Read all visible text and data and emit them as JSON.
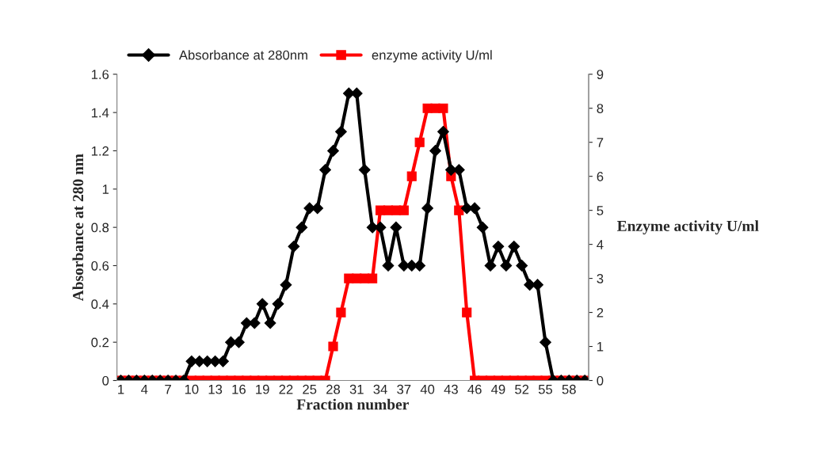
{
  "chart_data": {
    "type": "line",
    "categories": [
      "1",
      null,
      null,
      "4",
      null,
      null,
      "7",
      null,
      null,
      "10",
      null,
      null,
      "13",
      null,
      null,
      "16",
      null,
      null,
      "19",
      null,
      null,
      "22",
      null,
      null,
      "25",
      null,
      null,
      "28",
      null,
      null,
      "31",
      null,
      null,
      "34",
      null,
      null,
      "37",
      null,
      null,
      "40",
      null,
      null,
      "43",
      null,
      null,
      "46",
      null,
      null,
      "49",
      null,
      null,
      "52",
      null,
      null,
      "55",
      null,
      null,
      "58",
      null,
      null
    ],
    "xlabel": "Fraction number",
    "ylabel": "Absorbance at 280 nm",
    "y2label": "Enzyme activity U/ml",
    "series": [
      {
        "name": "Absorbance at 280nm",
        "color": "#000000",
        "marker": "diamond",
        "values": [
          0,
          0,
          0,
          0,
          0,
          0,
          0,
          0,
          0,
          0.1,
          0.1,
          0.1,
          0.1,
          0.1,
          0.2,
          0.2,
          0.3,
          0.3,
          0.4,
          0.3,
          0.4,
          0.5,
          0.7,
          0.8,
          0.9,
          0.9,
          1.1,
          1.2,
          1.3,
          1.5,
          1.5,
          1.1,
          0.8,
          0.8,
          0.6,
          0.8,
          0.6,
          0.6,
          0.6,
          0.9,
          1.2,
          1.3,
          1.1,
          1.1,
          0.9,
          0.9,
          0.8,
          0.6,
          0.7,
          0.6,
          0.7,
          0.6,
          0.5,
          0.5,
          0.2,
          0,
          0,
          0,
          0,
          0
        ]
      },
      {
        "name": "enzyme activity U/ml",
        "color": "#ff0000",
        "marker": "square",
        "axis": "y2",
        "values": [
          0,
          0,
          0,
          0,
          0,
          0,
          0,
          0,
          0,
          0,
          0,
          0,
          0,
          0,
          0,
          0,
          0,
          0,
          0,
          0,
          0,
          0,
          0,
          0,
          0,
          0,
          0,
          1,
          2,
          3,
          3,
          3,
          3,
          5,
          5,
          5,
          5,
          6,
          7,
          8,
          8,
          8,
          6,
          5,
          2,
          0,
          0,
          0,
          0,
          0,
          0,
          0,
          0,
          0,
          0,
          0,
          0,
          0,
          0,
          0
        ]
      }
    ],
    "ylim": [
      0,
      1.6
    ],
    "yticks": [
      0,
      0.2,
      0.4,
      0.6,
      0.8,
      1,
      1.2,
      1.4,
      1.6
    ],
    "y2lim": [
      0,
      9
    ],
    "y2ticks": [
      0,
      1,
      2,
      3,
      4,
      5,
      6,
      7,
      8,
      9
    ],
    "legend": "top",
    "grid": false
  }
}
